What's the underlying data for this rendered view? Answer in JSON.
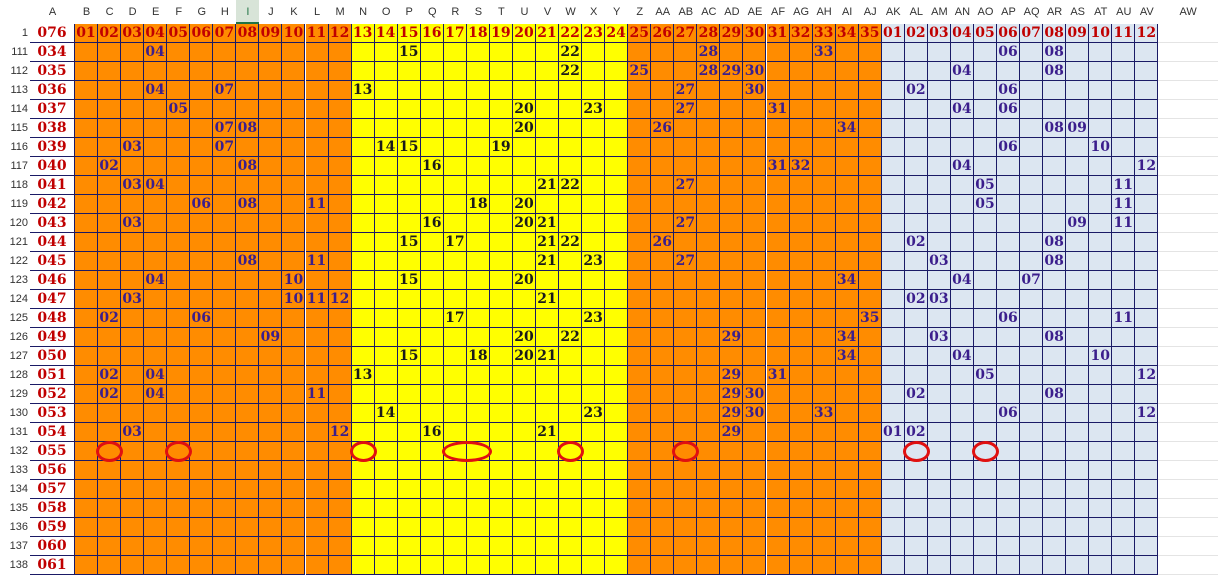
{
  "colors": {
    "orange": "#ff8c00",
    "yellow": "#ffff00",
    "blue": "#dce6f1",
    "number_purple": "#3b1e8c",
    "number_dark": "#1a1a1a",
    "a_column_red": "#c00000",
    "circle_red": "#e01010",
    "grid_line": "#1a1a66"
  },
  "column_headers": [
    "A",
    "B",
    "C",
    "D",
    "E",
    "F",
    "G",
    "H",
    "I",
    "J",
    "K",
    "L",
    "M",
    "N",
    "O",
    "P",
    "Q",
    "R",
    "S",
    "T",
    "U",
    "V",
    "W",
    "X",
    "Y",
    "Z",
    "AA",
    "AB",
    "AC",
    "AD",
    "AE",
    "AF",
    "AG",
    "AH",
    "AI",
    "AJ",
    "AK",
    "AL",
    "AM",
    "AN",
    "AO",
    "AP",
    "AQ",
    "AR",
    "AS",
    "AT",
    "AU",
    "AV",
    "AW"
  ],
  "selected_column": "I",
  "header_row": {
    "row_label": "1",
    "a_value": "076",
    "front": [
      "01",
      "02",
      "03",
      "04",
      "05",
      "06",
      "07",
      "08",
      "09",
      "10",
      "11",
      "12",
      "13",
      "14",
      "15",
      "16",
      "17",
      "18",
      "19",
      "20",
      "21",
      "22",
      "23",
      "24",
      "25",
      "26",
      "27",
      "28",
      "29",
      "30",
      "31",
      "32",
      "33",
      "34",
      "35"
    ],
    "back": [
      "01",
      "02",
      "03",
      "04",
      "05",
      "06",
      "07",
      "08",
      "09",
      "10",
      "11",
      "12"
    ]
  },
  "rows": [
    {
      "n": "111",
      "a": "034",
      "f": [
        "04",
        "15",
        "22",
        "28",
        "33"
      ],
      "b": [
        "06",
        "08"
      ]
    },
    {
      "n": "112",
      "a": "035",
      "f": [
        "22",
        "25",
        "28",
        "29",
        "30"
      ],
      "b": [
        "04",
        "08"
      ]
    },
    {
      "n": "113",
      "a": "036",
      "f": [
        "04",
        "07",
        "13",
        "27",
        "30"
      ],
      "b": [
        "02",
        "06"
      ]
    },
    {
      "n": "114",
      "a": "037",
      "f": [
        "05",
        "20",
        "23",
        "27",
        "31"
      ],
      "b": [
        "04",
        "06"
      ]
    },
    {
      "n": "115",
      "a": "038",
      "f": [
        "07",
        "08",
        "20",
        "26",
        "34"
      ],
      "b": [
        "08",
        "09"
      ]
    },
    {
      "n": "116",
      "a": "039",
      "f": [
        "03",
        "07",
        "14",
        "15",
        "19"
      ],
      "b": [
        "06",
        "10"
      ]
    },
    {
      "n": "117",
      "a": "040",
      "f": [
        "02",
        "08",
        "16",
        "31",
        "32"
      ],
      "b": [
        "04",
        "12"
      ]
    },
    {
      "n": "118",
      "a": "041",
      "f": [
        "03",
        "04",
        "21",
        "22",
        "27"
      ],
      "b": [
        "05",
        "11"
      ]
    },
    {
      "n": "119",
      "a": "042",
      "f": [
        "06",
        "08",
        "11",
        "18",
        "20"
      ],
      "b": [
        "05",
        "11"
      ]
    },
    {
      "n": "120",
      "a": "043",
      "f": [
        "03",
        "16",
        "20",
        "21",
        "27"
      ],
      "b": [
        "09",
        "11"
      ]
    },
    {
      "n": "121",
      "a": "044",
      "f": [
        "15",
        "17",
        "21",
        "22",
        "26"
      ],
      "b": [
        "02",
        "08"
      ]
    },
    {
      "n": "122",
      "a": "045",
      "f": [
        "08",
        "11",
        "21",
        "23",
        "27"
      ],
      "b": [
        "03",
        "08"
      ]
    },
    {
      "n": "123",
      "a": "046",
      "f": [
        "04",
        "10",
        "15",
        "20",
        "34"
      ],
      "b": [
        "04",
        "07"
      ]
    },
    {
      "n": "124",
      "a": "047",
      "f": [
        "03",
        "10",
        "11",
        "12",
        "21"
      ],
      "b": [
        "02",
        "03"
      ]
    },
    {
      "n": "125",
      "a": "048",
      "f": [
        "02",
        "06",
        "17",
        "23",
        "35"
      ],
      "b": [
        "06",
        "11"
      ]
    },
    {
      "n": "126",
      "a": "049",
      "f": [
        "09",
        "20",
        "22",
        "29",
        "34"
      ],
      "b": [
        "03",
        "08"
      ]
    },
    {
      "n": "127",
      "a": "050",
      "f": [
        "15",
        "18",
        "20",
        "21",
        "34"
      ],
      "b": [
        "04",
        "10"
      ]
    },
    {
      "n": "128",
      "a": "051",
      "f": [
        "02",
        "04",
        "13",
        "29",
        "31"
      ],
      "b": [
        "05",
        "12"
      ]
    },
    {
      "n": "129",
      "a": "052",
      "f": [
        "02",
        "04",
        "11",
        "29",
        "30"
      ],
      "b": [
        "02",
        "08"
      ]
    },
    {
      "n": "130",
      "a": "053",
      "f": [
        "14",
        "23",
        "29",
        "30",
        "33"
      ],
      "b": [
        "06",
        "12"
      ]
    },
    {
      "n": "131",
      "a": "054",
      "f": [
        "03",
        "12",
        "16",
        "21",
        "29"
      ],
      "b": [
        "01",
        "02"
      ]
    },
    {
      "n": "132",
      "a": "055",
      "f": [],
      "b": []
    },
    {
      "n": "133",
      "a": "056",
      "f": [],
      "b": []
    },
    {
      "n": "134",
      "a": "057",
      "f": [],
      "b": []
    },
    {
      "n": "135",
      "a": "058",
      "f": [],
      "b": []
    },
    {
      "n": "136",
      "a": "059",
      "f": [],
      "b": []
    },
    {
      "n": "137",
      "a": "060",
      "f": [],
      "b": []
    },
    {
      "n": "138",
      "a": "061",
      "f": [],
      "b": []
    }
  ],
  "circles": [
    {
      "row": "132",
      "cols": [
        "C"
      ]
    },
    {
      "row": "132",
      "cols": [
        "F"
      ]
    },
    {
      "row": "132",
      "cols": [
        "N"
      ]
    },
    {
      "row": "132",
      "cols": [
        "R",
        "S"
      ]
    },
    {
      "row": "132",
      "cols": [
        "W"
      ]
    },
    {
      "row": "132",
      "cols": [
        "AB"
      ]
    },
    {
      "row": "132",
      "cols": [
        "AL"
      ]
    },
    {
      "row": "132",
      "cols": [
        "AO"
      ]
    }
  ]
}
